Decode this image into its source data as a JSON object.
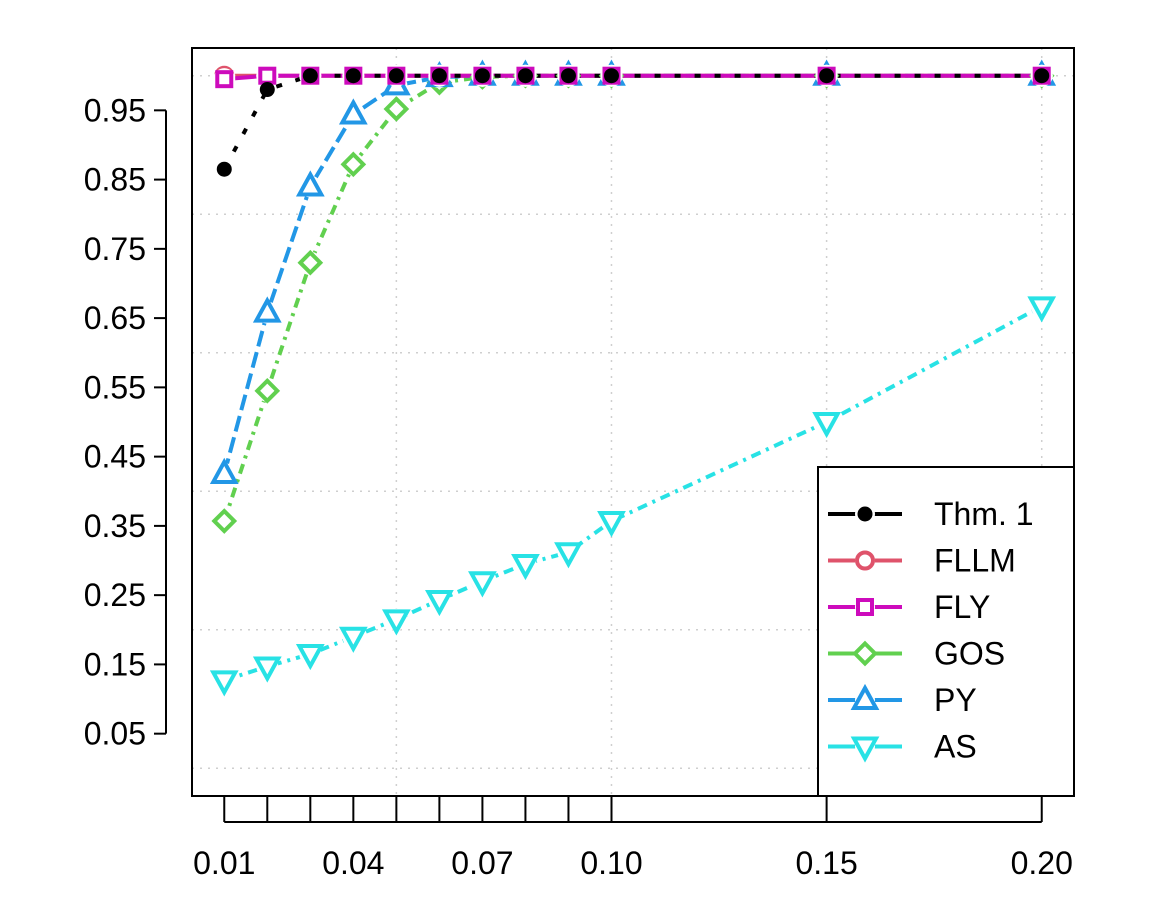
{
  "chart_data": {
    "type": "line",
    "title": "",
    "xlabel": "",
    "ylabel": "",
    "x": [
      0.01,
      0.02,
      0.03,
      0.04,
      0.05,
      0.06,
      0.07,
      0.08,
      0.09,
      0.1,
      0.15,
      0.2
    ],
    "xlim": [
      0.0025,
      0.2075
    ],
    "ylim": [
      -0.04,
      1.04
    ],
    "x_ticks": [
      0.01,
      0.02,
      0.03,
      0.04,
      0.05,
      0.06,
      0.07,
      0.08,
      0.09,
      0.1,
      0.15,
      0.2
    ],
    "x_tick_labels": [
      "0.01",
      "",
      "",
      "0.04",
      "",
      "",
      "0.07",
      "",
      "",
      "0.10",
      "0.15",
      "0.20"
    ],
    "y_ticks": [
      0.05,
      0.15,
      0.25,
      0.35,
      0.45,
      0.55,
      0.65,
      0.75,
      0.85,
      0.95
    ],
    "y_tick_labels": [
      "0.05",
      "0.15",
      "0.25",
      "0.35",
      "0.45",
      "0.55",
      "0.65",
      "0.75",
      "0.85",
      "0.95"
    ],
    "grid": true,
    "grid_style": "dotted",
    "grid_x": [
      0.05,
      0.1,
      0.15,
      0.2
    ],
    "grid_y": [
      0.0,
      0.2,
      0.4,
      0.6,
      0.8,
      1.0
    ],
    "legend_position": "bottom-right",
    "series": [
      {
        "name": "Thm. 1",
        "color": "#000000",
        "marker": "circle-filled",
        "dash": "6 14",
        "values": [
          0.865,
          0.98,
          1.0,
          1.0,
          1.0,
          1.0,
          1.0,
          1.0,
          1.0,
          1.0,
          1.0,
          1.0
        ]
      },
      {
        "name": "FLLM",
        "color": "#DF536B",
        "marker": "circle-open",
        "dash": "none",
        "values": [
          1.0,
          1.0,
          1.0,
          1.0,
          1.0,
          1.0,
          1.0,
          1.0,
          1.0,
          1.0,
          1.0,
          1.0
        ]
      },
      {
        "name": "FLY",
        "color": "#CD0BBC",
        "marker": "square-open",
        "dash": "none",
        "values": [
          0.995,
          1.0,
          1.0,
          1.0,
          1.0,
          1.0,
          1.0,
          1.0,
          1.0,
          1.0,
          1.0,
          1.0
        ]
      },
      {
        "name": "GOS",
        "color": "#61D04F",
        "marker": "diamond-open",
        "dash": "10 6 3 6",
        "values": [
          0.357,
          0.545,
          0.73,
          0.872,
          0.952,
          0.99,
          0.998,
          1.0,
          1.0,
          1.0,
          1.0,
          1.0
        ]
      },
      {
        "name": "PY",
        "color": "#2297E6",
        "marker": "triangle-up-open",
        "dash": "16 6",
        "values": [
          0.425,
          0.658,
          0.84,
          0.944,
          0.986,
          0.998,
          1.0,
          1.0,
          1.0,
          1.0,
          1.0,
          1.0
        ]
      },
      {
        "name": "AS",
        "color": "#28E2E5",
        "marker": "triangle-down-open",
        "dash": "10 6 3 6",
        "values": [
          0.127,
          0.147,
          0.165,
          0.19,
          0.215,
          0.243,
          0.27,
          0.295,
          0.312,
          0.357,
          0.5,
          0.667
        ]
      }
    ]
  }
}
